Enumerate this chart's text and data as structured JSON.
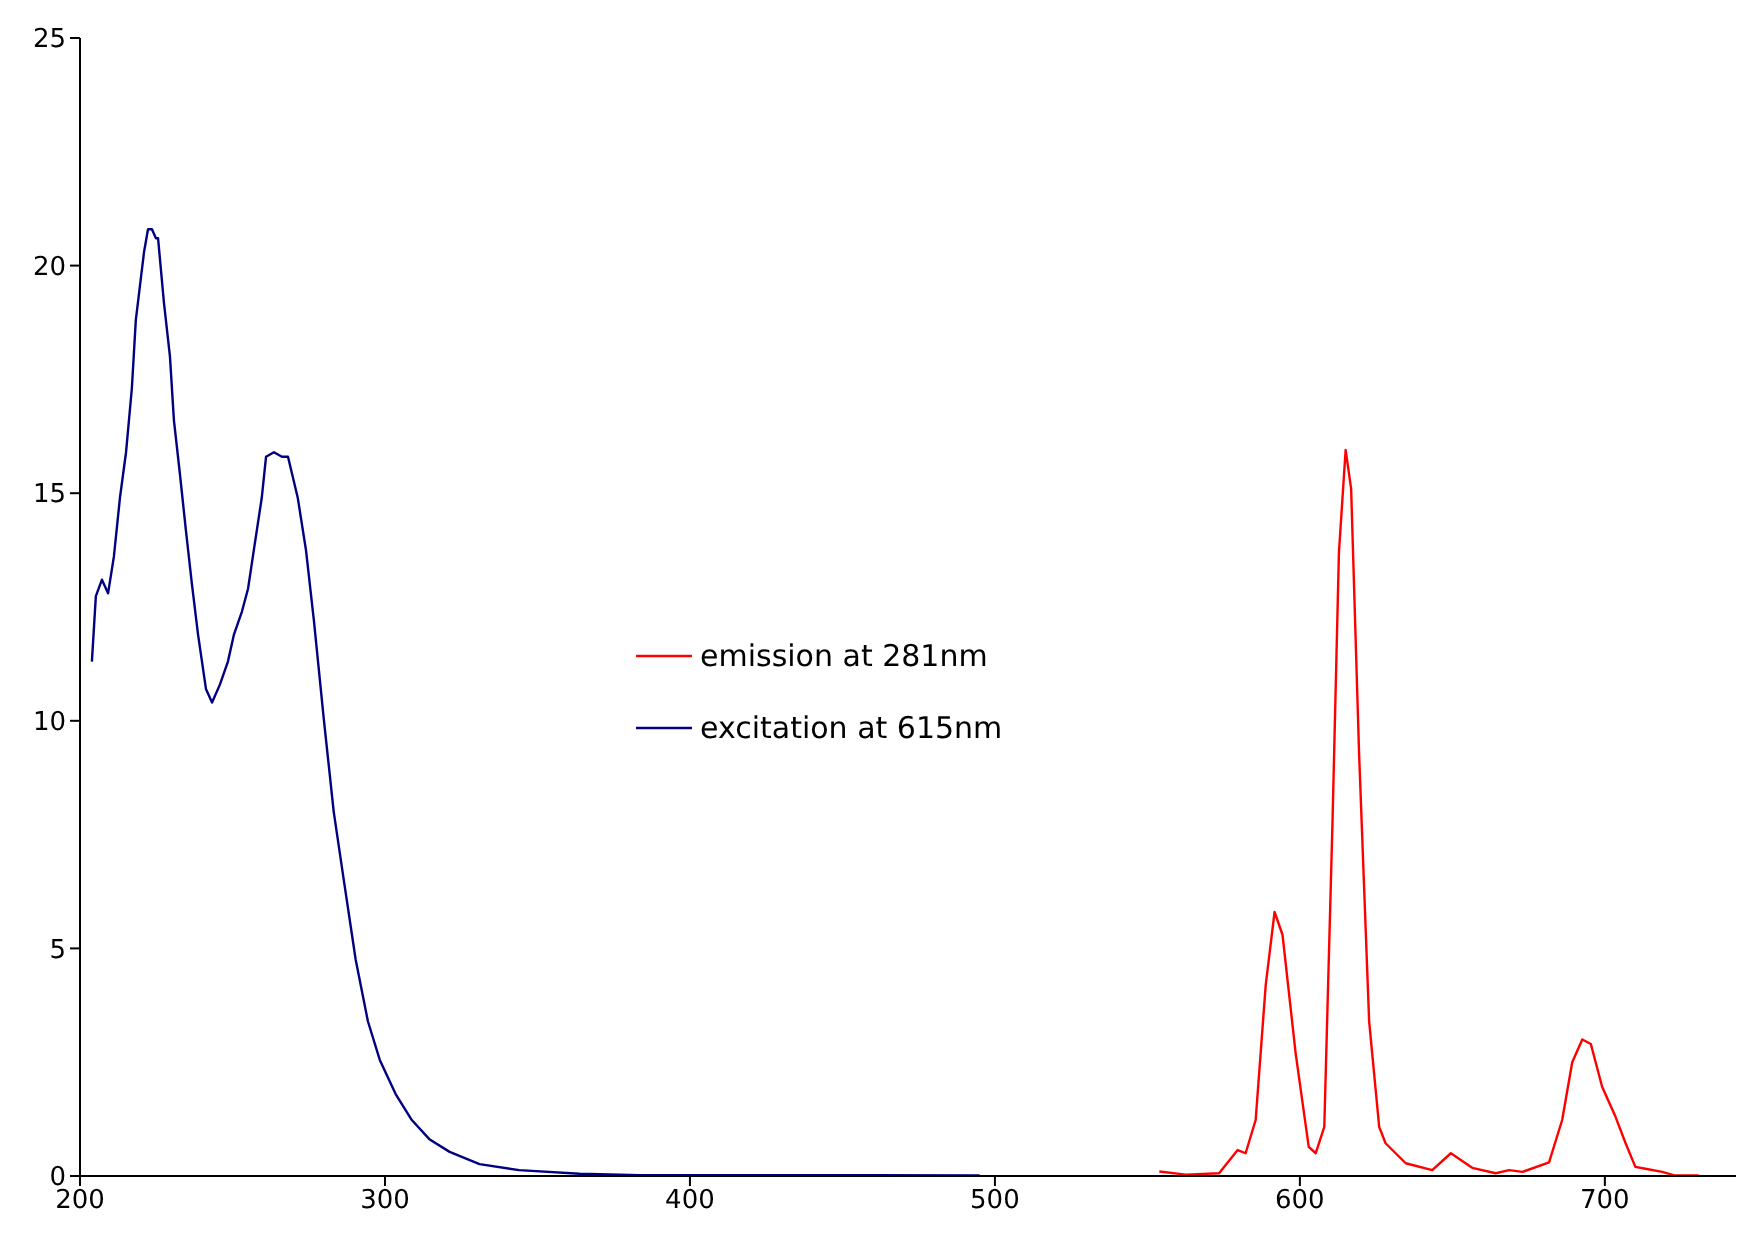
{
  "chart_data": {
    "type": "line",
    "xlim": [
      200,
      743
    ],
    "xticks": [
      200,
      300,
      400,
      500,
      600,
      700
    ],
    "ylim": [
      0,
      25
    ],
    "yticks": [
      0,
      5,
      10,
      15,
      20,
      25
    ],
    "grid": false,
    "legend": "center",
    "marker": "none",
    "line_style": "solid",
    "series": [
      {
        "name": "emission at 281nm",
        "color": "#ff0000",
        "x": [
          553.9,
          562.6,
          573.5,
          579.6,
          582.2,
          585.5,
          588.8,
          591.7,
          594.3,
          598.6,
          602.9,
          605.2,
          608,
          610.7,
          612.8,
          615,
          616.8,
          619.4,
          622.7,
          626,
          628.1,
          631.4,
          634.7,
          643.4,
          649.5,
          656.5,
          664.2,
          668.6,
          673,
          681.7,
          686,
          689.3,
          692.6,
          695.4,
          699.1,
          703.5,
          706.8,
          710,
          713.3,
          718.8,
          723.1,
          730.8
        ],
        "values": [
          0.1,
          0.03,
          0.06,
          0.57,
          0.5,
          1.23,
          4.2,
          5.8,
          5.3,
          2.7,
          0.64,
          0.5,
          1.08,
          7.8,
          13.7,
          15.95,
          15.1,
          9.3,
          3.4,
          1.08,
          0.72,
          0.5,
          0.28,
          0.13,
          0.5,
          0.18,
          0.06,
          0.13,
          0.09,
          0.3,
          1.23,
          2.5,
          3.0,
          2.9,
          1.96,
          1.3,
          0.72,
          0.2,
          0.16,
          0.09,
          0.01,
          0.01
        ]
      },
      {
        "name": "excitation at 615nm",
        "color": "#000080",
        "x": [
          203.9,
          205.2,
          207.2,
          209.2,
          211.1,
          213.1,
          215.1,
          217,
          218.3,
          221,
          222.3,
          223.6,
          224.9,
          225.6,
          227.5,
          229.5,
          230.8,
          232.8,
          234.7,
          236.7,
          238.7,
          241.3,
          243.3,
          245.9,
          248.5,
          250.5,
          253.1,
          255.1,
          257,
          259.6,
          261,
          263.6,
          266.2,
          268.2,
          271.4,
          274.1,
          276.7,
          280,
          283.2,
          286.5,
          290.4,
          294.4,
          298.3,
          303.5,
          308.8,
          314.7,
          321.2,
          331,
          344,
          363.8,
          383.5,
          420,
          460,
          495
        ],
        "values": [
          11.3,
          12.74,
          13.1,
          12.8,
          13.6,
          14.9,
          15.9,
          17.3,
          18.8,
          20.3,
          20.8,
          20.8,
          20.6,
          20.6,
          19.2,
          18,
          16.6,
          15.4,
          14.2,
          13,
          11.9,
          10.7,
          10.4,
          10.8,
          11.3,
          11.9,
          12.4,
          12.9,
          13.75,
          14.9,
          15.8,
          15.9,
          15.8,
          15.8,
          14.9,
          13.75,
          12.2,
          10,
          8,
          6.5,
          4.75,
          3.4,
          2.55,
          1.8,
          1.23,
          0.8,
          0.53,
          0.26,
          0.13,
          0.05,
          0.02,
          0.02,
          0.02,
          0.01
        ]
      }
    ]
  }
}
